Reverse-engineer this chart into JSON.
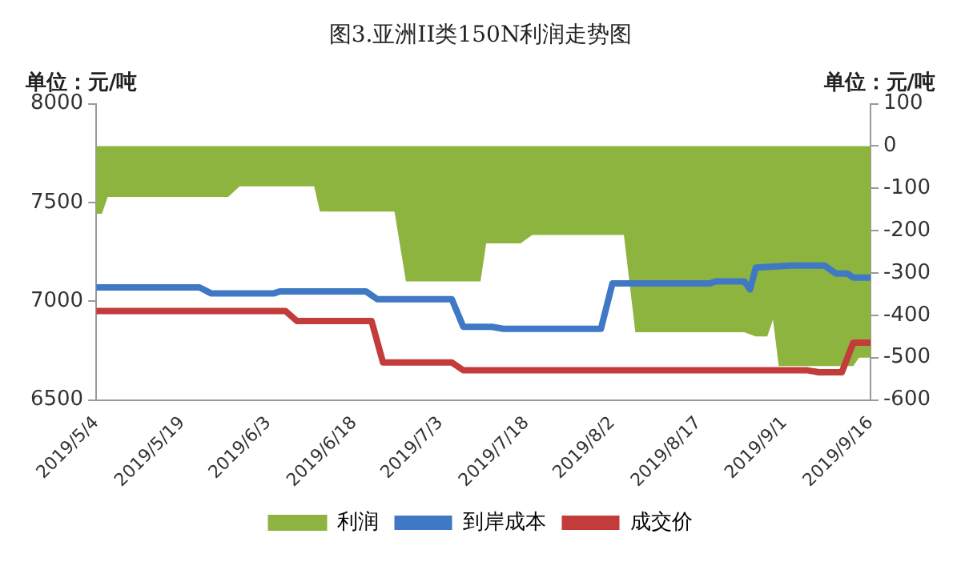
{
  "chart_data": {
    "type": "line",
    "title": "图3.亚洲II类150N利润走势图",
    "ylabel": "单位：元/吨",
    "y2label": "单位：元/吨",
    "xlim": [
      "2019-05-04",
      "2019-09-16"
    ],
    "xticks": [
      {
        "value": "2019-05-04",
        "label": "2019/5/4"
      },
      {
        "value": "2019-05-19",
        "label": "2019/5/19"
      },
      {
        "value": "2019-06-03",
        "label": "2019/6/3"
      },
      {
        "value": "2019-06-18",
        "label": "2019/6/18"
      },
      {
        "value": "2019-07-03",
        "label": "2019/7/3"
      },
      {
        "value": "2019-07-18",
        "label": "2019/7/18"
      },
      {
        "value": "2019-08-02",
        "label": "2019/8/2"
      },
      {
        "value": "2019-08-17",
        "label": "2019/8/17"
      },
      {
        "value": "2019-09-01",
        "label": "2019/9/1"
      },
      {
        "value": "2019-09-16",
        "label": "2019/9/16"
      }
    ],
    "ylim": [
      6500,
      8000
    ],
    "yticks": [
      6500,
      7000,
      7500,
      8000
    ],
    "y2lim": [
      -600,
      100
    ],
    "y2ticks": [
      -600,
      -500,
      -400,
      -300,
      -200,
      -100,
      0,
      100
    ],
    "grid": false,
    "legend": "bottom",
    "marker": "none",
    "line_style": "solid",
    "series": [
      {
        "name": "利润",
        "type": "area",
        "axis": "y2",
        "color": "#8db43e",
        "x": [
          "2019-05-04",
          "2019-05-05",
          "2019-05-06",
          "2019-05-27",
          "2019-05-29",
          "2019-06-11",
          "2019-06-12",
          "2019-06-25",
          "2019-06-27",
          "2019-07-10",
          "2019-07-11",
          "2019-07-17",
          "2019-07-19",
          "2019-08-04",
          "2019-08-06",
          "2019-08-25",
          "2019-08-27",
          "2019-08-29",
          "2019-08-30",
          "2019-08-31",
          "2019-09-13",
          "2019-09-14",
          "2019-09-16"
        ],
        "values": [
          -160,
          -160,
          -120,
          -120,
          -95,
          -95,
          -155,
          -155,
          -320,
          -320,
          -230,
          -230,
          -210,
          -210,
          -440,
          -440,
          -450,
          -450,
          -410,
          -520,
          -520,
          -500,
          -500
        ]
      },
      {
        "name": "到岸成本",
        "type": "line",
        "color": "#3f78c4",
        "x": [
          "2019-05-04",
          "2019-05-22",
          "2019-05-24",
          "2019-06-04",
          "2019-06-05",
          "2019-06-20",
          "2019-06-22",
          "2019-07-05",
          "2019-07-07",
          "2019-07-12",
          "2019-07-14",
          "2019-07-31",
          "2019-08-02",
          "2019-08-19",
          "2019-08-20",
          "2019-08-25",
          "2019-08-26",
          "2019-08-27",
          "2019-09-02",
          "2019-09-08",
          "2019-09-10",
          "2019-09-12",
          "2019-09-13",
          "2019-09-16"
        ],
        "values": [
          7070,
          7070,
          7040,
          7040,
          7050,
          7050,
          7010,
          7010,
          6870,
          6870,
          6860,
          6860,
          7090,
          7090,
          7100,
          7100,
          7060,
          7170,
          7180,
          7180,
          7140,
          7140,
          7120,
          7120
        ]
      },
      {
        "name": "成交价",
        "type": "line",
        "color": "#c33b3b",
        "x": [
          "2019-05-04",
          "2019-06-06",
          "2019-06-08",
          "2019-06-21",
          "2019-06-23",
          "2019-07-05",
          "2019-07-07",
          "2019-09-05",
          "2019-09-07",
          "2019-09-11",
          "2019-09-13",
          "2019-09-16"
        ],
        "values": [
          6950,
          6950,
          6900,
          6900,
          6690,
          6690,
          6650,
          6650,
          6640,
          6640,
          6790,
          6790
        ]
      }
    ]
  }
}
